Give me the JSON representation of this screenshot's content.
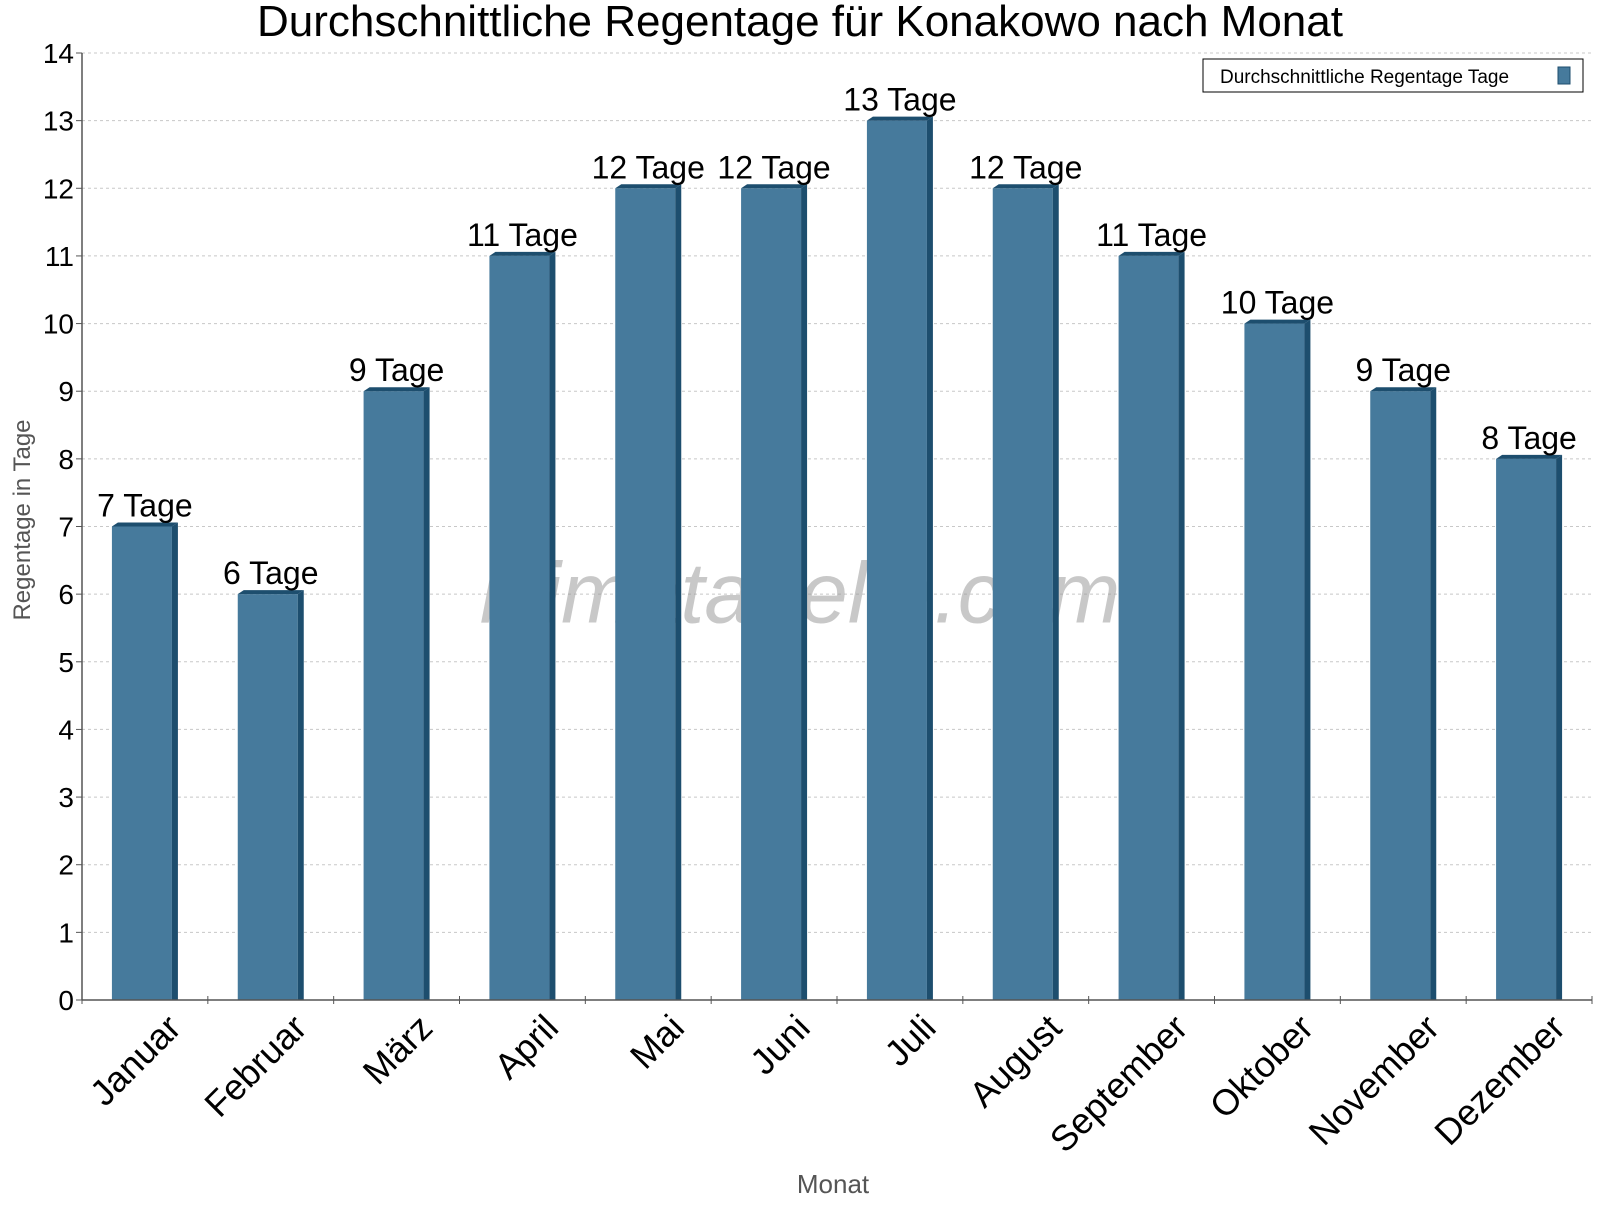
{
  "chart_data": {
    "type": "bar",
    "title": "Durchschnittliche Regentage für Konakowo nach Monat",
    "xlabel": "Monat",
    "ylabel": "Regentage in Tage",
    "categories": [
      "Januar",
      "Februar",
      "März",
      "April",
      "Mai",
      "Juni",
      "Juli",
      "August",
      "September",
      "Oktober",
      "November",
      "Dezember"
    ],
    "series": [
      {
        "name": "Durchschnittliche Regentage Tage",
        "values": [
          7,
          6,
          9,
          11,
          12,
          12,
          13,
          12,
          11,
          10,
          9,
          8
        ],
        "data_labels": [
          "7 Tage",
          "6 Tage",
          "9 Tage",
          "11 Tage",
          "12 Tage",
          "12 Tage",
          "13 Tage",
          "12 Tage",
          "11 Tage",
          "10 Tage",
          "9 Tage",
          "8 Tage"
        ],
        "color": "#467a9c"
      }
    ],
    "ylim": [
      0,
      14
    ],
    "yticks": [
      0,
      1,
      2,
      3,
      4,
      5,
      6,
      7,
      8,
      9,
      10,
      11,
      12,
      13,
      14
    ],
    "grid": true,
    "legend_position": "top-right",
    "watermark": "klimatabelle.com",
    "colors": {
      "bar": "#467a9c",
      "bar_side": "#1d4e6e",
      "bar_top": "#1d4e6e",
      "grid": "#c8c8c8",
      "axis": "#555555"
    }
  }
}
